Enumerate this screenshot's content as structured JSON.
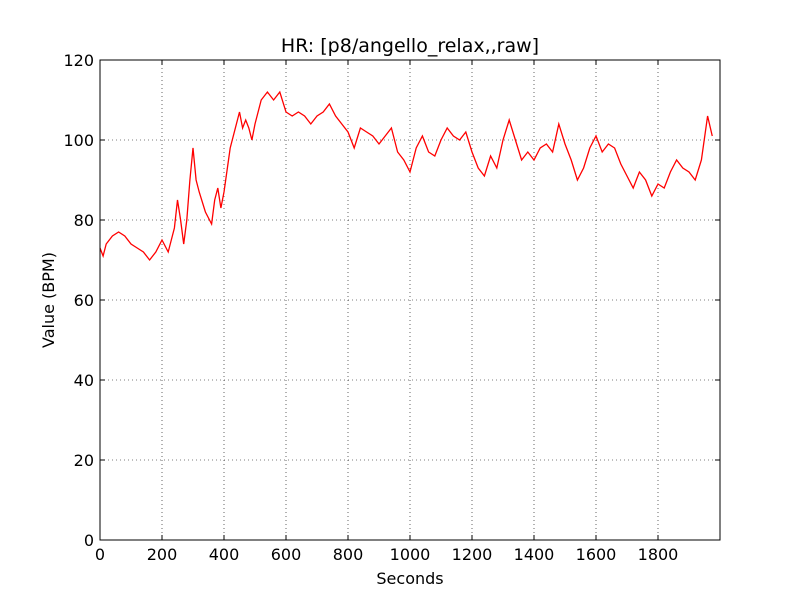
{
  "chart_data": {
    "type": "line",
    "title": "HR: [p8/angello_relax,,raw]",
    "x_label": "Seconds",
    "y_label": "Value (BPM)",
    "x": [
      0,
      10,
      20,
      40,
      60,
      80,
      100,
      120,
      140,
      160,
      180,
      200,
      220,
      240,
      250,
      260,
      270,
      280,
      290,
      300,
      310,
      320,
      340,
      360,
      370,
      380,
      390,
      400,
      420,
      440,
      450,
      460,
      470,
      480,
      490,
      500,
      520,
      540,
      560,
      580,
      600,
      620,
      640,
      660,
      680,
      700,
      720,
      740,
      760,
      780,
      800,
      820,
      840,
      860,
      880,
      900,
      920,
      940,
      960,
      980,
      1000,
      1020,
      1040,
      1060,
      1080,
      1100,
      1120,
      1140,
      1160,
      1180,
      1200,
      1220,
      1240,
      1260,
      1280,
      1300,
      1320,
      1340,
      1360,
      1380,
      1400,
      1420,
      1440,
      1460,
      1480,
      1500,
      1520,
      1540,
      1560,
      1580,
      1600,
      1620,
      1640,
      1660,
      1680,
      1700,
      1720,
      1740,
      1760,
      1780,
      1800,
      1820,
      1840,
      1860,
      1880,
      1900,
      1920,
      1940,
      1960,
      1975
    ],
    "series": [
      {
        "name": "HR",
        "color": "#ff0000",
        "values": [
          73,
          71,
          74,
          76,
          77,
          76,
          74,
          73,
          72,
          70,
          72,
          75,
          72,
          78,
          85,
          80,
          74,
          80,
          90,
          98,
          90,
          87,
          82,
          79,
          85,
          88,
          83,
          87,
          98,
          104,
          107,
          103,
          105,
          103,
          100,
          104,
          110,
          112,
          110,
          112,
          107,
          106,
          107,
          106,
          104,
          106,
          107,
          109,
          106,
          104,
          102,
          98,
          103,
          102,
          101,
          99,
          101,
          103,
          97,
          95,
          92,
          98,
          101,
          97,
          96,
          100,
          103,
          101,
          100,
          102,
          97,
          93,
          91,
          96,
          93,
          100,
          105,
          100,
          95,
          97,
          95,
          98,
          99,
          97,
          104,
          99,
          95,
          90,
          93,
          98,
          101,
          97,
          99,
          98,
          94,
          91,
          88,
          92,
          90,
          86,
          89,
          88,
          92,
          95,
          93,
          92,
          90,
          95,
          106,
          101
        ]
      }
    ],
    "xlim": [
      0,
      2000
    ],
    "ylim": [
      0,
      120
    ],
    "xticks": [
      0,
      200,
      400,
      600,
      800,
      1000,
      1200,
      1400,
      1600,
      1800
    ],
    "yticks": [
      0,
      20,
      40,
      60,
      80,
      100,
      120
    ],
    "grid": true
  }
}
